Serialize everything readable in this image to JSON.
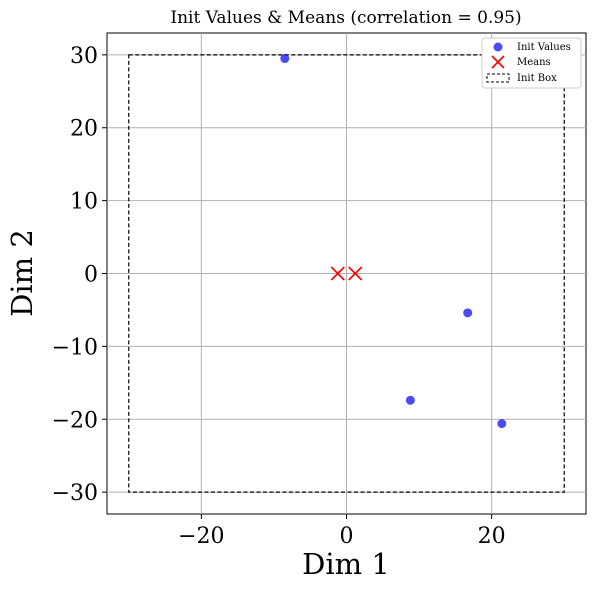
{
  "chart_data": {
    "type": "scatter",
    "title": "Init Values & Means (correlation = 0.95)",
    "xlabel": "Dim 1",
    "ylabel": "Dim 2",
    "xlim": [
      -33,
      33
    ],
    "ylim": [
      -33,
      33
    ],
    "x_ticks": [
      -20,
      0,
      20
    ],
    "x_tick_labels": [
      "−20",
      "0",
      "20"
    ],
    "y_ticks": [
      -30,
      -20,
      -10,
      0,
      10,
      20,
      30
    ],
    "y_tick_labels": [
      "−30",
      "−20",
      "−10",
      "0",
      "10",
      "20",
      "30"
    ],
    "grid": true,
    "legend_position": "top-right",
    "series": [
      {
        "name": "Init Values",
        "kind": "scatter",
        "marker": "circle",
        "color": "#0000ee",
        "x": [
          -8.5,
          16.7,
          8.8,
          21.4
        ],
        "y": [
          29.5,
          -5.4,
          -17.4,
          -20.6
        ]
      },
      {
        "name": "Means",
        "kind": "scatter",
        "marker": "x",
        "color": "#ff0000",
        "x": [
          -1.2,
          1.2
        ],
        "y": [
          0,
          0
        ]
      },
      {
        "name": "Init Box",
        "kind": "box",
        "style": "dashed",
        "color": "#000000",
        "x": [
          -30,
          30
        ],
        "y": [
          -30,
          30
        ]
      }
    ]
  }
}
